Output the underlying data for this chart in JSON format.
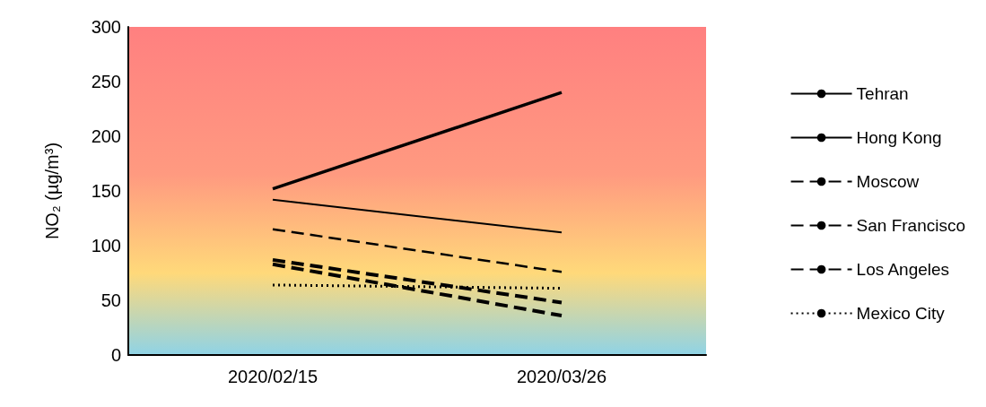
{
  "chart_data": {
    "type": "line",
    "ylabel": "NO₂ (µg/m³)",
    "categories": [
      "2020/02/15",
      "2020/03/26"
    ],
    "series": [
      {
        "name": "Tehran",
        "color": "#000000",
        "values": [
          152,
          240
        ],
        "line_style": "solid"
      },
      {
        "name": "Hong Kong",
        "color": "#000000",
        "values": [
          142,
          112
        ],
        "line_style": "solid"
      },
      {
        "name": "Moscow",
        "color": "#000000",
        "values": [
          115,
          76
        ],
        "line_style": "dashed"
      },
      {
        "name": "San Francisco",
        "color": "#000000",
        "values": [
          87,
          48
        ],
        "line_style": "dashed"
      },
      {
        "name": "Los Angeles",
        "color": "#000000",
        "values": [
          83,
          36
        ],
        "line_style": "dashed"
      },
      {
        "name": "Mexico City",
        "color": "#000000",
        "values": [
          64,
          61
        ],
        "line_style": "dotted"
      }
    ],
    "ylim": [
      0,
      300
    ],
    "yticks": [
      0,
      50,
      100,
      150,
      200,
      250,
      300
    ],
    "grid": false,
    "legend": "right",
    "marker": "none"
  }
}
